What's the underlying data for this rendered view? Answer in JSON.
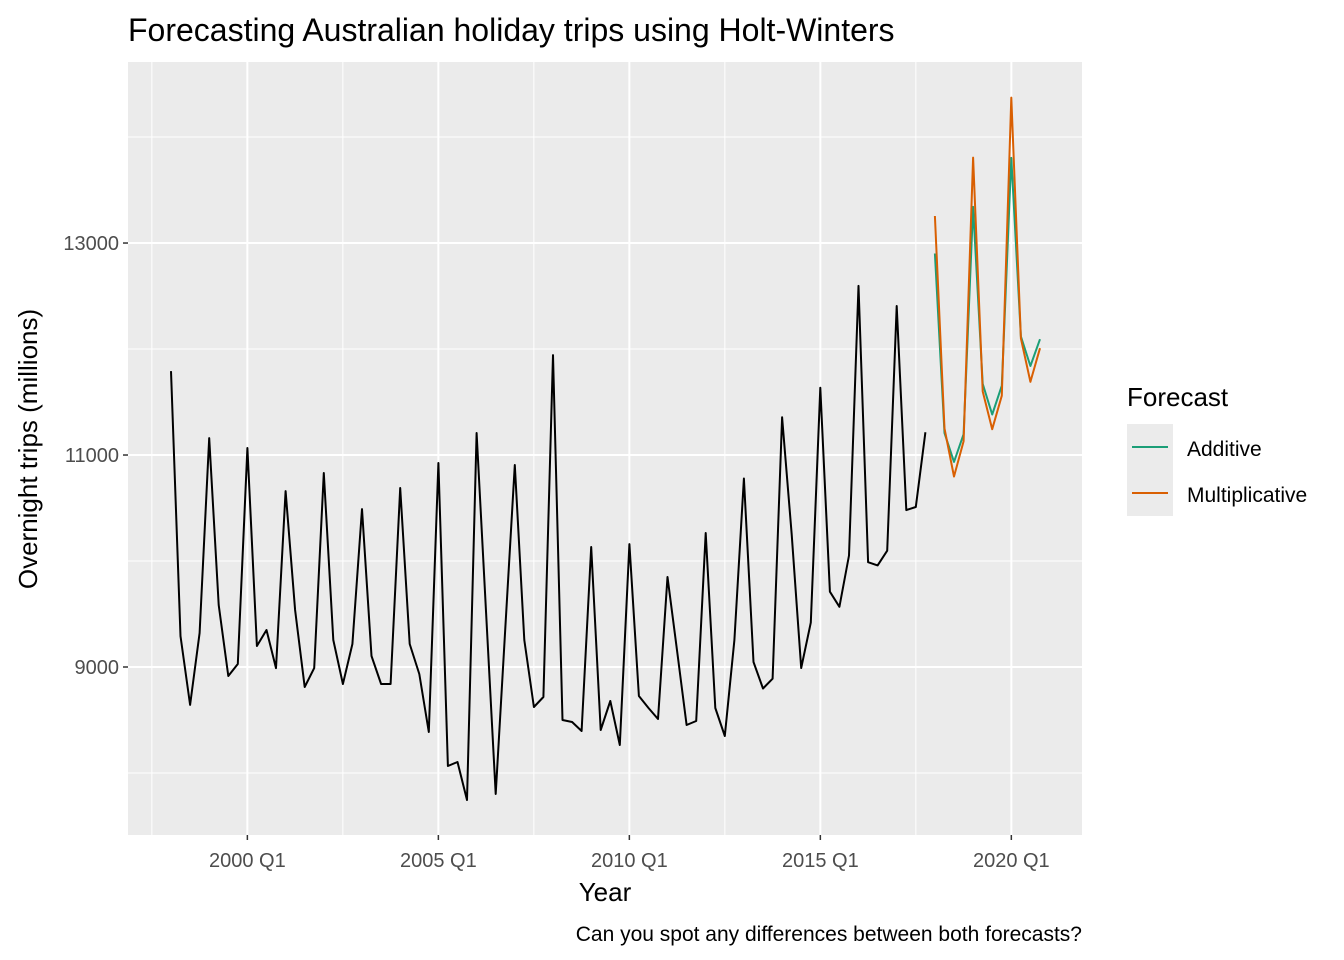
{
  "chart_data": {
    "type": "line",
    "title": "Forecasting Australian holiday trips using Holt-Winters",
    "xlabel": "Year",
    "ylabel": "Overnight trips (millions)",
    "caption": "Can you spot any differences between both forecasts?",
    "xlim": [
      1996.875,
      2021.85
    ],
    "ylim": [
      7415,
      14708
    ],
    "grid": true,
    "x_ticks": [
      2000,
      2005,
      2010,
      2015,
      2020
    ],
    "x_tick_labels": [
      "2000 Q1",
      "2005 Q1",
      "2010 Q1",
      "2015 Q1",
      "2020 Q1"
    ],
    "y_ticks": [
      9000,
      11000,
      13000
    ],
    "y_tick_labels": [
      "9000",
      "11000",
      "13000"
    ],
    "legend": {
      "title": "Forecast",
      "position": "right"
    },
    "history": {
      "name": "Observed",
      "color": "#000000",
      "start": "1998 Q1",
      "values": [
        11792,
        9292,
        8642,
        9321,
        11160,
        9585,
        8915,
        9028,
        11066,
        9198,
        9349,
        8990,
        10660,
        9538,
        8811,
        8990,
        10830,
        9255,
        8840,
        9217,
        10490,
        9104,
        8840,
        8840,
        10689,
        9217,
        8934,
        8387,
        10925,
        8066,
        8104,
        7745,
        11208,
        9509,
        7802,
        9350,
        10906,
        9255,
        8623,
        8717,
        11943,
        8500,
        8481,
        8396,
        10132,
        8406,
        8679,
        8264,
        10160,
        8726,
        8613,
        8509,
        9849,
        9151,
        8453,
        8491,
        10264,
        8613,
        8349,
        9255,
        10778,
        9047,
        8797,
        8890,
        11356,
        10250,
        8991,
        9419,
        11635,
        9710,
        9568,
        10052,
        12596,
        9989,
        9959,
        10097,
        12406,
        10480,
        10510,
        11214
      ]
    },
    "series": [
      {
        "name": "Additive",
        "color": "#1B9E77",
        "start": "2018 Q1",
        "values": [
          12901,
          11207,
          10935,
          11196,
          13341,
          11672,
          11382,
          11654,
          13803,
          12119,
          11840,
          12093
        ]
      },
      {
        "name": "Multiplicative",
        "color": "#D95F02",
        "start": "2018 Q1",
        "values": [
          13255,
          11250,
          10797,
          11130,
          13806,
          11600,
          11244,
          11560,
          14372,
          12100,
          11691,
          12008
        ]
      }
    ]
  }
}
